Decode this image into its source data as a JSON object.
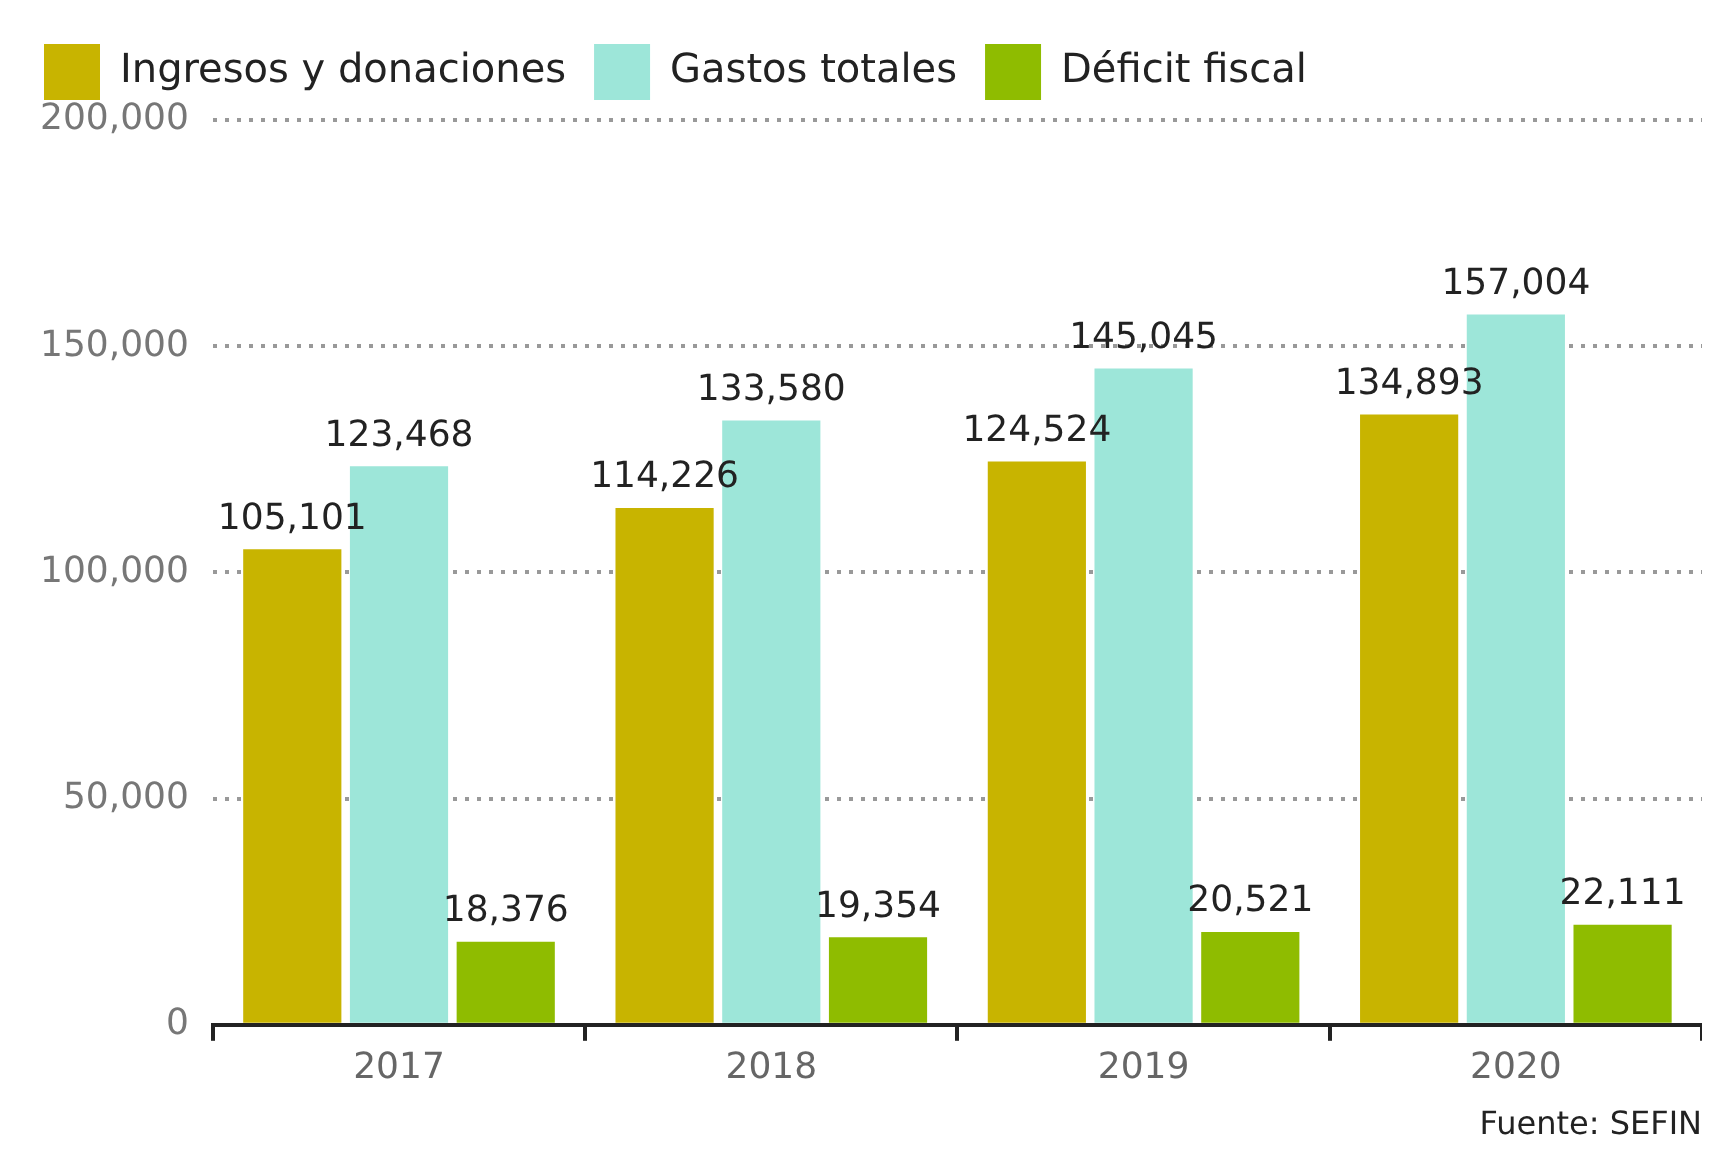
{
  "chart_data": {
    "type": "bar",
    "categories": [
      "2017",
      "2018",
      "2019",
      "2020"
    ],
    "series": [
      {
        "name": "Ingresos y donaciones",
        "color": "#c8b400",
        "values": [
          105101,
          114226,
          124524,
          134893
        ],
        "value_labels": [
          "105,101",
          "114,226",
          "124,524",
          "134,893"
        ]
      },
      {
        "name": "Gastos totales",
        "color": "#9de6d9",
        "values": [
          123468,
          133580,
          145045,
          157004
        ],
        "value_labels": [
          "123,468",
          "133,580",
          "145,045",
          "157,004"
        ]
      },
      {
        "name": "Déficit fiscal",
        "color": "#8fbc00",
        "values": [
          18376,
          19354,
          20521,
          22111
        ],
        "value_labels": [
          "18,376",
          "19,354",
          "20,521",
          "22,111"
        ]
      }
    ],
    "ylim": [
      0,
      200000
    ],
    "yticks": [
      0,
      {
        "value": 50000,
        "label": "50,000"
      },
      {
        "value": 100000,
        "label": "100,000"
      },
      {
        "value": 150000,
        "label": "150,000"
      },
      {
        "value": 200000,
        "label": "200,000"
      }
    ],
    "grid": "y",
    "legend": "top",
    "annotations": [
      "Fuente: SEFIN"
    ]
  }
}
